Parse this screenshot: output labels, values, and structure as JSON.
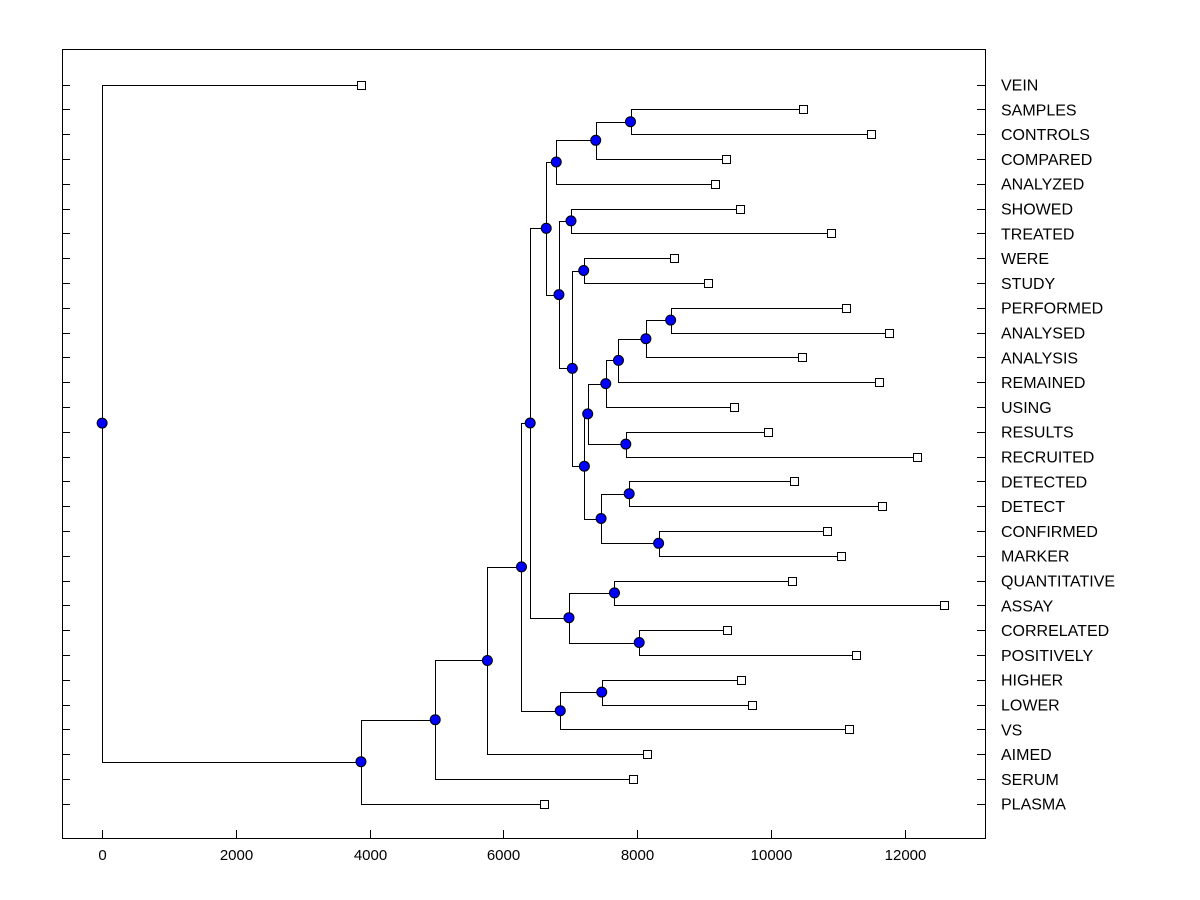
{
  "chart_data": {
    "type": "dendrogram",
    "orientation": "horizontal",
    "title": "",
    "xlabel": "",
    "ylabel": "",
    "xlim": [
      -600,
      13200
    ],
    "x_ticks": [
      0,
      2000,
      4000,
      6000,
      8000,
      10000,
      12000
    ],
    "grid": false,
    "legend": "none",
    "colors": {
      "node": "#0000ff",
      "line": "#000000",
      "leaf": "#ffffff"
    },
    "leaves": [
      {
        "label": "VEIN",
        "x": 3870
      },
      {
        "label": "SAMPLES",
        "x": 10480
      },
      {
        "label": "CONTROLS",
        "x": 11500
      },
      {
        "label": "COMPARED",
        "x": 9330
      },
      {
        "label": "ANALYZED",
        "x": 9170
      },
      {
        "label": "SHOWED",
        "x": 9530
      },
      {
        "label": "TREATED",
        "x": 10900
      },
      {
        "label": "WERE",
        "x": 8550
      },
      {
        "label": "STUDY",
        "x": 9060
      },
      {
        "label": "PERFORMED",
        "x": 11120
      },
      {
        "label": "ANALYSED",
        "x": 11760
      },
      {
        "label": "ANALYSIS",
        "x": 10460
      },
      {
        "label": "REMAINED",
        "x": 11620
      },
      {
        "label": "USING",
        "x": 9440
      },
      {
        "label": "RESULTS",
        "x": 9950
      },
      {
        "label": "RECRUITED",
        "x": 12180
      },
      {
        "label": "DETECTED",
        "x": 10350
      },
      {
        "label": "DETECT",
        "x": 11660
      },
      {
        "label": "CONFIRMED",
        "x": 10840
      },
      {
        "label": "MARKER",
        "x": 11050
      },
      {
        "label": "QUANTITATIVE",
        "x": 10320
      },
      {
        "label": "ASSAY",
        "x": 12590
      },
      {
        "label": "CORRELATED",
        "x": 9350
      },
      {
        "label": "POSITIVELY",
        "x": 11270
      },
      {
        "label": "HIGHER",
        "x": 9550
      },
      {
        "label": "LOWER",
        "x": 9720
      },
      {
        "label": "VS",
        "x": 11170
      },
      {
        "label": "AIMED",
        "x": 8140
      },
      {
        "label": "SERUM",
        "x": 7930
      },
      {
        "label": "PLASMA",
        "x": 6610
      }
    ],
    "merges": [
      {
        "id": "m1",
        "x": 7900,
        "children": [
          "L1",
          "L2"
        ]
      },
      {
        "id": "m2",
        "x": 7380,
        "children": [
          "m1",
          "L3"
        ]
      },
      {
        "id": "m3",
        "x": 6790,
        "children": [
          "m2",
          "L4"
        ]
      },
      {
        "id": "m4",
        "x": 7010,
        "children": [
          "L5",
          "L6"
        ]
      },
      {
        "id": "m5",
        "x": 7200,
        "children": [
          "L7",
          "L8"
        ]
      },
      {
        "id": "m6",
        "x": 8500,
        "children": [
          "L9",
          "L10"
        ]
      },
      {
        "id": "m7",
        "x": 8130,
        "children": [
          "m6",
          "L11"
        ]
      },
      {
        "id": "m8",
        "x": 7720,
        "children": [
          "m7",
          "L12"
        ]
      },
      {
        "id": "m9",
        "x": 7530,
        "children": [
          "m8",
          "L13"
        ]
      },
      {
        "id": "m10",
        "x": 7830,
        "children": [
          "L14",
          "L15"
        ]
      },
      {
        "id": "m11",
        "x": 7260,
        "children": [
          "m9",
          "m10"
        ]
      },
      {
        "id": "m12",
        "x": 7880,
        "children": [
          "L16",
          "L17"
        ]
      },
      {
        "id": "m13",
        "x": 8320,
        "children": [
          "L18",
          "L19"
        ]
      },
      {
        "id": "m14",
        "x": 7460,
        "children": [
          "m12",
          "m13"
        ]
      },
      {
        "id": "m15",
        "x": 7210,
        "children": [
          "m11",
          "m14"
        ]
      },
      {
        "id": "m16",
        "x": 7030,
        "children": [
          "m5",
          "m15"
        ]
      },
      {
        "id": "m17",
        "x": 6830,
        "children": [
          "m4",
          "m16"
        ]
      },
      {
        "id": "m18",
        "x": 6640,
        "children": [
          "m3",
          "m17"
        ]
      },
      {
        "id": "m19",
        "x": 7660,
        "children": [
          "L20",
          "L21"
        ]
      },
      {
        "id": "m20",
        "x": 8030,
        "children": [
          "L22",
          "L23"
        ]
      },
      {
        "id": "m21",
        "x": 6980,
        "children": [
          "m19",
          "m20"
        ]
      },
      {
        "id": "m22",
        "x": 6400,
        "children": [
          "m18",
          "m21"
        ]
      },
      {
        "id": "m23",
        "x": 7470,
        "children": [
          "L24",
          "L25"
        ]
      },
      {
        "id": "m24",
        "x": 6850,
        "children": [
          "m23",
          "L26"
        ]
      },
      {
        "id": "m25",
        "x": 6270,
        "children": [
          "m22",
          "m24"
        ]
      },
      {
        "id": "m26",
        "x": 5760,
        "children": [
          "m25",
          "L27"
        ]
      },
      {
        "id": "m27",
        "x": 4980,
        "children": [
          "m26",
          "L28"
        ]
      },
      {
        "id": "m28",
        "x": 3870,
        "children": [
          "m27",
          "L29"
        ]
      },
      {
        "id": "m29",
        "x": 0,
        "children": [
          "L0",
          "m28"
        ]
      }
    ]
  }
}
